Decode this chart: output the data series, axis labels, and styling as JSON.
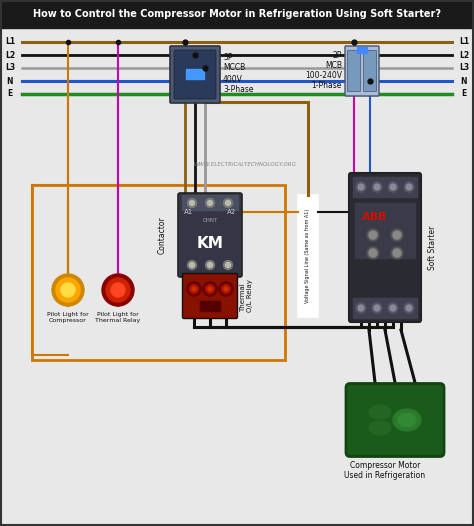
{
  "title": "How to Control the Compressor Motor in Refrigeration Using Soft Starter?",
  "title_bg": "#1a1a1a",
  "title_fg": "#ffffff",
  "bg_color": "#e8e8e8",
  "wire_colors": {
    "L1": "#8B6010",
    "L2": "#111111",
    "L3": "#999999",
    "N": "#2255cc",
    "E": "#228B22"
  },
  "mccb_label": [
    "3P",
    "MCCB",
    "400V",
    "3-Phase"
  ],
  "mcb_label": [
    "2P",
    "MCB",
    "100-240V",
    "1-Phase"
  ],
  "website": "WWW.ELECTRICALTECHNOLOGY.ORG",
  "contactor_label": "KM",
  "contactor_text": "Contactor",
  "thermal_text": "Thermal\nO/L Relay",
  "soft_starter_text": "Soft Starter",
  "voltage_signal_text": "Voltage Signal Line (Same as from A1)",
  "pilot1_text": "Pilot Light for\nCompressor",
  "pilot2_text": "Pilot Light for\nThermal Relay",
  "compressor_text": "Compressor Motor\nUsed in Refrigeration",
  "a1_label": "A1",
  "a2_label": "A2",
  "pilot1_color": "#FFA500",
  "pilot2_color": "#cc2200",
  "wire_orange": "#cc7700",
  "wire_blue": "#2255cc",
  "wire_black": "#111111",
  "wire_magenta": "#cc00aa",
  "wire_brown": "#8B6010",
  "wire_gray": "#999999",
  "wire_green": "#228B22"
}
